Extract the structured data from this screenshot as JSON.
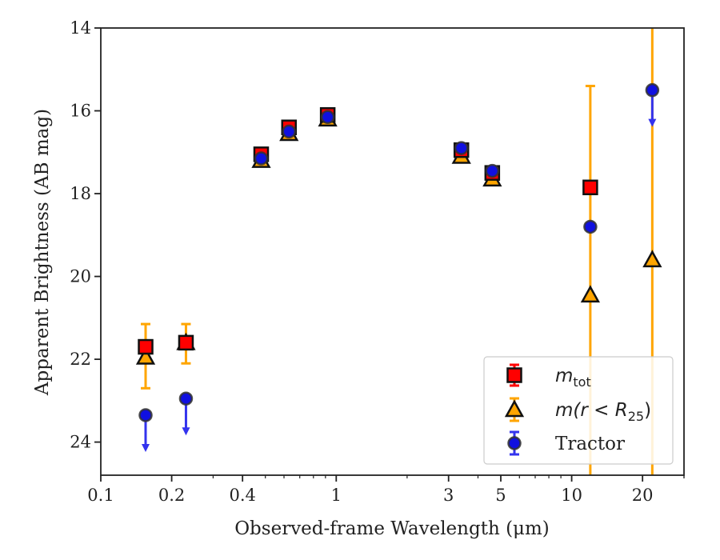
{
  "chart_data": {
    "type": "scatter",
    "xlabel": "Observed-frame Wavelength (μm)",
    "ylabel": "Apparent Brightness (AB mag)",
    "x_scale": "log",
    "xlim": [
      0.1,
      30
    ],
    "ylim": [
      24.8,
      14
    ],
    "y_inverted": true,
    "x_ticks": [
      {
        "value": 0.1,
        "label": "0.1"
      },
      {
        "value": 0.2,
        "label": "0.2"
      },
      {
        "value": 0.4,
        "label": "0.4"
      },
      {
        "value": 1,
        "label": "1"
      },
      {
        "value": 3,
        "label": "3"
      },
      {
        "value": 5,
        "label": "5"
      },
      {
        "value": 10,
        "label": "10"
      },
      {
        "value": 20,
        "label": "20"
      }
    ],
    "y_ticks": [
      {
        "value": 14,
        "label": "14"
      },
      {
        "value": 16,
        "label": "16"
      },
      {
        "value": 18,
        "label": "18"
      },
      {
        "value": 20,
        "label": "20"
      },
      {
        "value": 22,
        "label": "22"
      },
      {
        "value": 24,
        "label": "24"
      }
    ],
    "grid": false,
    "legend_position": "lower-right",
    "series": [
      {
        "name": "m_tot",
        "legend_label": "m",
        "legend_sub": "tot",
        "marker": "square",
        "color": "#ff0000",
        "errcolor": "#ff0000",
        "points": [
          {
            "x": 0.155,
            "y": 21.7,
            "err": 0
          },
          {
            "x": 0.23,
            "y": 21.6,
            "err": 0
          },
          {
            "x": 0.48,
            "y": 17.05,
            "err": 0.1
          },
          {
            "x": 0.63,
            "y": 16.4,
            "err": 0.1
          },
          {
            "x": 0.92,
            "y": 16.1,
            "err": 0.1
          },
          {
            "x": 3.4,
            "y": 16.95,
            "err": 0
          },
          {
            "x": 4.6,
            "y": 17.5,
            "err": 0
          },
          {
            "x": 12.0,
            "y": 17.85,
            "err": 0
          }
        ]
      },
      {
        "name": "m(r < R_25)",
        "legend_label": "m(r < R",
        "legend_sub": "25",
        "legend_tail": ")",
        "marker": "triangle",
        "color": "#ffa500",
        "errcolor": "#ffa500",
        "points": [
          {
            "x": 0.155,
            "y": 21.95,
            "err_low": 0.8,
            "err_high": 0.75
          },
          {
            "x": 0.23,
            "y": 21.6,
            "err_low": 0.45,
            "err_high": 0.5
          },
          {
            "x": 0.48,
            "y": 17.2,
            "err": 0
          },
          {
            "x": 0.63,
            "y": 16.55,
            "err": 0
          },
          {
            "x": 0.92,
            "y": 16.2,
            "err": 0
          },
          {
            "x": 3.4,
            "y": 17.1,
            "err": 0
          },
          {
            "x": 4.6,
            "y": 17.65,
            "err": 0
          },
          {
            "x": 12.0,
            "y": 20.45,
            "err_low": 5.05,
            "err_high": 8.0
          },
          {
            "x": 22.0,
            "y": 19.6,
            "err_low": 8.0,
            "err_high": 8.0
          }
        ]
      },
      {
        "name": "Tractor",
        "legend_label": "Tractor",
        "marker": "circle",
        "color": "#1010e0",
        "errcolor": "#3333ee",
        "points": [
          {
            "x": 0.155,
            "y": 23.35,
            "upper_limit": true
          },
          {
            "x": 0.23,
            "y": 22.95,
            "upper_limit": true
          },
          {
            "x": 0.48,
            "y": 17.15,
            "err": 0
          },
          {
            "x": 0.63,
            "y": 16.5,
            "err": 0
          },
          {
            "x": 0.92,
            "y": 16.15,
            "err": 0
          },
          {
            "x": 3.4,
            "y": 16.9,
            "err": 0
          },
          {
            "x": 4.6,
            "y": 17.45,
            "err": 0
          },
          {
            "x": 12.0,
            "y": 18.8,
            "err": 0
          },
          {
            "x": 22.0,
            "y": 15.5,
            "upper_limit": true
          }
        ]
      }
    ]
  }
}
